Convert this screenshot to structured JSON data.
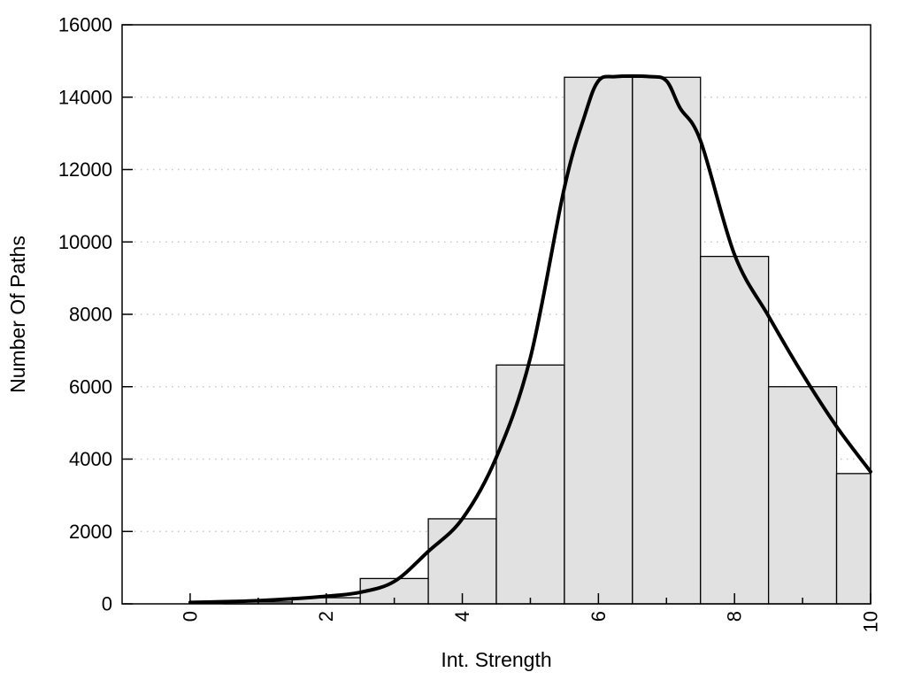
{
  "chart_data": {
    "type": "bar",
    "subtype": "histogram-with-fit-curve",
    "title": "",
    "xlabel": "Int. Strength",
    "ylabel": "Number Of Paths",
    "xlim": [
      -1,
      10
    ],
    "ylim": [
      0,
      16000
    ],
    "grid": "horizontal-dotted",
    "legend": "none",
    "x_major_ticks": [
      0,
      2,
      4,
      6,
      8,
      10
    ],
    "x_major_tick_labels": [
      "0",
      "2",
      "4",
      "6",
      "8",
      "10"
    ],
    "x_minor_ticks": [
      1,
      3,
      5,
      7,
      9
    ],
    "y_ticks": [
      0,
      2000,
      4000,
      6000,
      8000,
      10000,
      12000,
      14000,
      16000
    ],
    "y_tick_labels": [
      "0",
      "2000",
      "4000",
      "6000",
      "8000",
      "10000",
      "12000",
      "14000",
      "16000"
    ],
    "grid_y_values": [
      2000,
      4000,
      6000,
      8000,
      10000,
      12000,
      14000
    ],
    "histogram": {
      "bin_width": 1,
      "bin_centers": [
        1,
        2,
        3,
        4,
        5,
        6,
        7,
        8,
        9,
        10
      ],
      "values": [
        50,
        170,
        700,
        2350,
        6600,
        14550,
        14550,
        9600,
        6000,
        3600
      ],
      "clip_x_max": 10
    },
    "fit_curve": {
      "points": [
        [
          0,
          40
        ],
        [
          0.5,
          60
        ],
        [
          1,
          90
        ],
        [
          1.5,
          140
        ],
        [
          2,
          210
        ],
        [
          2.5,
          320
        ],
        [
          3,
          620
        ],
        [
          3.5,
          1450
        ],
        [
          4,
          2350
        ],
        [
          4.5,
          4050
        ],
        [
          5,
          6800
        ],
        [
          5.5,
          11500
        ],
        [
          5.8,
          13500
        ],
        [
          6,
          14450
        ],
        [
          6.25,
          14570
        ],
        [
          6.75,
          14570
        ],
        [
          7,
          14450
        ],
        [
          7.2,
          13700
        ],
        [
          7.5,
          12800
        ],
        [
          8,
          9650
        ],
        [
          8.5,
          7950
        ],
        [
          9,
          6350
        ],
        [
          9.5,
          4900
        ],
        [
          10,
          3650
        ]
      ]
    }
  },
  "style": {
    "background": "#ffffff",
    "bar_fill": "#e1e1e1",
    "bar_stroke": "#000000",
    "curve_color": "#000000",
    "grid_color": "#c8c8c8",
    "axis_color": "#000000"
  }
}
